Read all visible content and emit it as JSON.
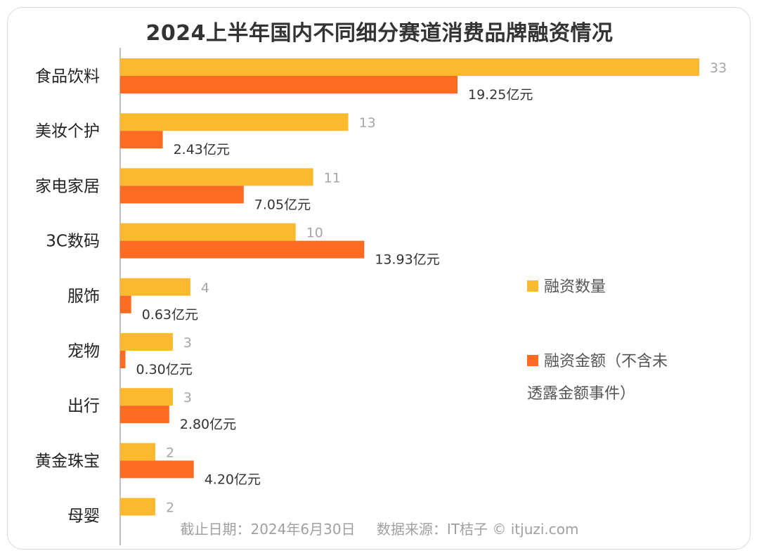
{
  "chart_data": {
    "type": "bar",
    "orientation": "horizontal",
    "title": "2024上半年国内不同细分赛道消费品牌融资情况",
    "categories": [
      "食品饮料",
      "美妆个护",
      "家电家居",
      "3C数码",
      "服饰",
      "宠物",
      "出行",
      "黄金珠宝",
      "母婴"
    ],
    "series": [
      {
        "name": "融资数量",
        "color": "#FBBA2E",
        "values": [
          33,
          13,
          11,
          10,
          4,
          3,
          3,
          2,
          2
        ],
        "labels": [
          "33",
          "13",
          "11",
          "10",
          "4",
          "3",
          "3",
          "2",
          "2"
        ]
      },
      {
        "name": "融资金额（不含未透露金额事件）",
        "color": "#FB6B21",
        "values": [
          19.25,
          2.43,
          7.05,
          13.93,
          0.63,
          0.3,
          2.8,
          4.2,
          null
        ],
        "labels": [
          "19.25亿元",
          "2.43亿元",
          "7.05亿元",
          "13.93亿元",
          "0.63亿元",
          "0.30亿元",
          "2.80亿元",
          "4.20亿元",
          ""
        ]
      }
    ],
    "legend_placement": "right",
    "grid": false
  },
  "legend": {
    "count_label": "融资数量",
    "amount_label_line1": "融资金额（不含未",
    "amount_label_line2": "透露金额事件）"
  },
  "footer": {
    "date_text": "截止日期：2024年6月30日",
    "source_text": "数据来源：IT桔子 © itjuzi.com"
  }
}
